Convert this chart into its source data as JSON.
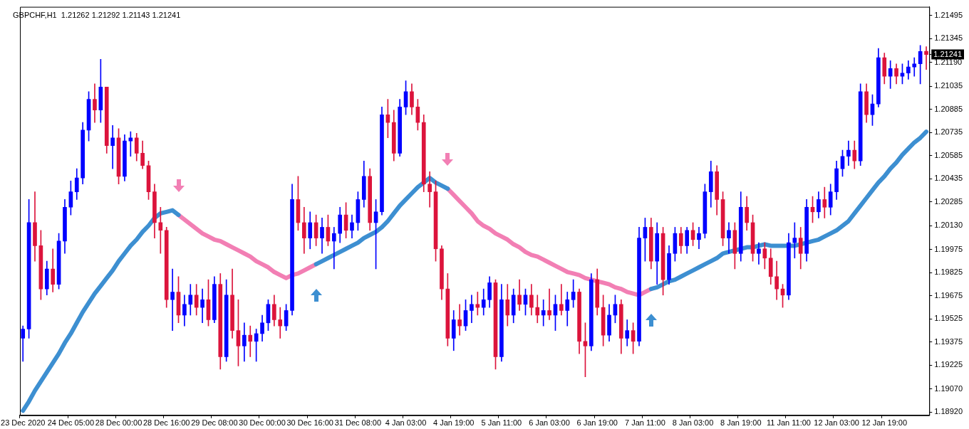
{
  "chart_data": {
    "type": "candlestick",
    "title": "GBPCHF,H1  1.21262 1.21292 1.21143 1.21241",
    "categories": [
      "23 Dec 2020",
      null,
      null,
      null,
      null,
      null,
      null,
      null,
      "24 Dec 05:00",
      null,
      null,
      null,
      null,
      null,
      null,
      null,
      "28 Dec 00:00",
      null,
      null,
      null,
      null,
      null,
      null,
      null,
      "28 Dec 16:00",
      null,
      null,
      null,
      null,
      null,
      null,
      null,
      "29 Dec 08:00",
      null,
      null,
      null,
      null,
      null,
      null,
      null,
      "30 Dec 00:00",
      null,
      null,
      null,
      null,
      null,
      null,
      null,
      "30 Dec 16:00",
      null,
      null,
      null,
      null,
      null,
      null,
      null,
      "31 Dec 08:00",
      null,
      null,
      null,
      null,
      null,
      null,
      null,
      "4 Jan 03:00",
      null,
      null,
      null,
      null,
      null,
      null,
      null,
      "4 Jan 19:00",
      null,
      null,
      null,
      null,
      null,
      null,
      null,
      "5 Jan 11:00",
      null,
      null,
      null,
      null,
      null,
      null,
      null,
      "6 Jan 03:00",
      null,
      null,
      null,
      null,
      null,
      null,
      null,
      "6 Jan 19:00",
      null,
      null,
      null,
      null,
      null,
      null,
      null,
      "7 Jan 11:00",
      null,
      null,
      null,
      null,
      null,
      null,
      null,
      "8 Jan 03:00",
      null,
      null,
      null,
      null,
      null,
      null,
      null,
      "8 Jan 19:00",
      null,
      null,
      null,
      null,
      null,
      null,
      null,
      "11 Jan 11:00",
      null,
      null,
      null,
      null,
      null,
      null,
      null,
      "12 Jan 03:00",
      null,
      null,
      null,
      null,
      null,
      null,
      null,
      "12 Jan 19:00",
      null,
      null,
      null,
      null,
      null,
      null,
      null
    ],
    "ohlc": [
      [
        1.194,
        1.1948,
        1.1925,
        1.1946
      ],
      [
        1.1946,
        1.203,
        1.194,
        1.2015
      ],
      [
        1.2015,
        1.2035,
        1.199,
        1.2
      ],
      [
        1.2,
        1.201,
        1.1965,
        1.1972
      ],
      [
        1.1972,
        1.199,
        1.1968,
        1.1985
      ],
      [
        1.1985,
        1.1998,
        1.197,
        1.1975
      ],
      [
        1.1975,
        1.2008,
        1.1972,
        1.2003
      ],
      [
        1.2003,
        1.203,
        1.1995,
        1.2025
      ],
      [
        1.2025,
        1.2042,
        1.202,
        1.2035
      ],
      [
        1.2035,
        1.205,
        1.203,
        1.2044
      ],
      [
        1.2044,
        1.208,
        1.204,
        1.2075
      ],
      [
        1.2075,
        1.21,
        1.2068,
        1.2095
      ],
      [
        1.2095,
        1.2105,
        1.208,
        1.2088
      ],
      [
        1.2088,
        1.2121,
        1.208,
        1.2103
      ],
      [
        1.2103,
        1.2103,
        1.206,
        1.2065
      ],
      [
        1.2065,
        1.2078,
        1.205,
        1.207
      ],
      [
        1.207,
        1.2076,
        1.204,
        1.2045
      ],
      [
        1.2045,
        1.2072,
        1.2042,
        1.2068
      ],
      [
        1.2068,
        1.2074,
        1.2058,
        1.207
      ],
      [
        1.207,
        1.2073,
        1.2055,
        1.206
      ],
      [
        1.206,
        1.2068,
        1.205,
        1.2052
      ],
      [
        1.2052,
        1.2055,
        1.203,
        1.2035
      ],
      [
        1.2035,
        1.204,
        1.2005,
        1.2015
      ],
      [
        1.2015,
        1.2025,
        1.1995,
        1.201
      ],
      [
        1.201,
        1.2012,
        1.196,
        1.1965
      ],
      [
        1.1965,
        1.1985,
        1.1945,
        1.197
      ],
      [
        1.197,
        1.198,
        1.195,
        1.1955
      ],
      [
        1.1955,
        1.1968,
        1.1948,
        1.1962
      ],
      [
        1.1962,
        1.1975,
        1.1955,
        1.1968
      ],
      [
        1.1968,
        1.1975,
        1.1955,
        1.196
      ],
      [
        1.196,
        1.1972,
        1.195,
        1.1965
      ],
      [
        1.1965,
        1.1978,
        1.1948,
        1.1952
      ],
      [
        1.1952,
        1.198,
        1.195,
        1.1975
      ],
      [
        1.1975,
        1.1982,
        1.192,
        1.1928
      ],
      [
        1.1928,
        1.1978,
        1.1925,
        1.1968
      ],
      [
        1.1968,
        1.1985,
        1.194,
        1.1945
      ],
      [
        1.1945,
        1.1965,
        1.1922,
        1.1935
      ],
      [
        1.1935,
        1.195,
        1.1925,
        1.1942
      ],
      [
        1.1942,
        1.1948,
        1.1928,
        1.1938
      ],
      [
        1.1938,
        1.1946,
        1.1925,
        1.1943
      ],
      [
        1.1943,
        1.1955,
        1.1938,
        1.195
      ],
      [
        1.195,
        1.1965,
        1.1945,
        1.1962
      ],
      [
        1.1962,
        1.1968,
        1.1948,
        1.1952
      ],
      [
        1.1952,
        1.196,
        1.194,
        1.1948
      ],
      [
        1.1948,
        1.1962,
        1.1945,
        1.1958
      ],
      [
        1.1958,
        1.204,
        1.1955,
        1.203
      ],
      [
        1.203,
        1.2045,
        1.201,
        1.2015
      ],
      [
        1.2015,
        1.2025,
        1.1995,
        1.2005
      ],
      [
        1.2005,
        1.2022,
        1.1998,
        1.2015
      ],
      [
        1.2015,
        1.202,
        1.2,
        1.2005
      ],
      [
        1.2005,
        1.2018,
        1.1995,
        1.2012
      ],
      [
        1.2012,
        1.202,
        1.2,
        1.2003
      ],
      [
        1.2003,
        1.2012,
        1.1985,
        1.2008
      ],
      [
        1.2008,
        1.2025,
        1.2002,
        1.202
      ],
      [
        1.202,
        1.2028,
        1.2005,
        1.201
      ],
      [
        1.201,
        1.202,
        1.2005,
        1.2015
      ],
      [
        1.2015,
        1.2035,
        1.201,
        1.203
      ],
      [
        1.203,
        1.2055,
        1.2025,
        1.2045
      ],
      [
        1.2045,
        1.205,
        1.201,
        1.2015
      ],
      [
        1.2015,
        1.203,
        1.1985,
        1.2022
      ],
      [
        1.2022,
        1.209,
        1.202,
        1.2085
      ],
      [
        1.2085,
        1.2095,
        1.207,
        1.208
      ],
      [
        1.208,
        1.2088,
        1.2055,
        1.206
      ],
      [
        1.206,
        1.2095,
        1.2058,
        1.209
      ],
      [
        1.209,
        1.2107,
        1.2085,
        1.21
      ],
      [
        1.21,
        1.2105,
        1.2085,
        1.209
      ],
      [
        1.209,
        1.2095,
        1.2075,
        1.208
      ],
      [
        1.208,
        1.2085,
        1.2035,
        1.204
      ],
      [
        1.204,
        1.2048,
        1.2025,
        1.2035
      ],
      [
        1.2035,
        1.2042,
        1.199,
        1.1998
      ],
      [
        1.1998,
        1.2,
        1.1965,
        1.1972
      ],
      [
        1.1972,
        1.1982,
        1.1935,
        1.194
      ],
      [
        1.194,
        1.1958,
        1.1932,
        1.1952
      ],
      [
        1.1952,
        1.1962,
        1.1942,
        1.1948
      ],
      [
        1.1948,
        1.1965,
        1.1945,
        1.1958
      ],
      [
        1.1958,
        1.1968,
        1.195,
        1.1962
      ],
      [
        1.1962,
        1.197,
        1.1955,
        1.196
      ],
      [
        1.196,
        1.1972,
        1.1955,
        1.1965
      ],
      [
        1.1965,
        1.198,
        1.196,
        1.1976
      ],
      [
        1.1976,
        1.1978,
        1.192,
        1.1928
      ],
      [
        1.1928,
        1.1975,
        1.1925,
        1.1965
      ],
      [
        1.1965,
        1.1975,
        1.1948,
        1.1955
      ],
      [
        1.1955,
        1.1972,
        1.195,
        1.1968
      ],
      [
        1.1968,
        1.1978,
        1.1958,
        1.1962
      ],
      [
        1.1962,
        1.1972,
        1.1955,
        1.1968
      ],
      [
        1.1968,
        1.1975,
        1.1955,
        1.196
      ],
      [
        1.196,
        1.1968,
        1.195,
        1.1955
      ],
      [
        1.1955,
        1.1965,
        1.1948,
        1.1958
      ],
      [
        1.1958,
        1.1972,
        1.1952,
        1.1955
      ],
      [
        1.1955,
        1.1968,
        1.1945,
        1.1962
      ],
      [
        1.1962,
        1.1975,
        1.1955,
        1.1958
      ],
      [
        1.1958,
        1.197,
        1.1948,
        1.1965
      ],
      [
        1.1965,
        1.1978,
        1.196,
        1.197
      ],
      [
        1.197,
        1.1972,
        1.193,
        1.1938
      ],
      [
        1.1938,
        1.195,
        1.1915,
        1.1935
      ],
      [
        1.1935,
        1.1982,
        1.1932,
        1.1978
      ],
      [
        1.1978,
        1.1985,
        1.1955,
        1.196
      ],
      [
        1.196,
        1.1968,
        1.1935,
        1.1942
      ],
      [
        1.1942,
        1.1962,
        1.1938,
        1.1955
      ],
      [
        1.1955,
        1.1968,
        1.195,
        1.1962
      ],
      [
        1.1962,
        1.1965,
        1.193,
        1.194
      ],
      [
        1.194,
        1.1952,
        1.1935,
        1.1945
      ],
      [
        1.1945,
        1.195,
        1.193,
        1.1938
      ],
      [
        1.1938,
        1.2012,
        1.1935,
        1.2005
      ],
      [
        1.2005,
        1.2018,
        1.199,
        1.2012
      ],
      [
        1.2012,
        1.2018,
        1.1985,
        1.199
      ],
      [
        1.199,
        1.2015,
        1.1975,
        1.2008
      ],
      [
        1.2008,
        1.2012,
        1.1968,
        1.1978
      ],
      [
        1.1978,
        1.2,
        1.1975,
        1.1995
      ],
      [
        1.1995,
        1.2012,
        1.199,
        1.2008
      ],
      [
        1.2008,
        1.2012,
        1.1995,
        1.2
      ],
      [
        1.2,
        1.2012,
        1.1995,
        1.201
      ],
      [
        1.201,
        1.2015,
        1.2,
        1.2004
      ],
      [
        1.2004,
        1.2012,
        1.1998,
        1.2008
      ],
      [
        1.2008,
        1.204,
        1.2005,
        1.2035
      ],
      [
        1.2035,
        1.2055,
        1.2025,
        1.2048
      ],
      [
        1.2048,
        1.2052,
        1.202,
        1.203
      ],
      [
        1.203,
        1.2035,
        1.2,
        1.2005
      ],
      [
        1.2005,
        1.2015,
        1.1995,
        1.201
      ],
      [
        1.201,
        1.2015,
        1.1985,
        1.1995
      ],
      [
        1.1995,
        1.2035,
        1.199,
        1.2025
      ],
      [
        1.2025,
        1.2032,
        1.201,
        1.2015
      ],
      [
        1.2015,
        1.202,
        1.199,
        1.1995
      ],
      [
        1.1995,
        1.2002,
        1.1988,
        1.1998
      ],
      [
        1.1998,
        1.2002,
        1.1985,
        1.1992
      ],
      [
        1.1992,
        1.1998,
        1.1975,
        1.198
      ],
      [
        1.198,
        1.199,
        1.1965,
        1.1972
      ],
      [
        1.1972,
        1.1975,
        1.196,
        1.1968
      ],
      [
        1.1968,
        1.2008,
        1.1965,
        1.2002
      ],
      [
        1.2002,
        1.2015,
        1.1992,
        1.2005
      ],
      [
        1.2005,
        1.2012,
        1.1985,
        1.1995
      ],
      [
        1.1995,
        1.203,
        1.199,
        1.2025
      ],
      [
        1.2025,
        1.2032,
        1.2015,
        1.2022
      ],
      [
        1.2022,
        1.2035,
        1.2018,
        1.203
      ],
      [
        1.203,
        1.2038,
        1.2018,
        1.2025
      ],
      [
        1.2025,
        1.204,
        1.202,
        1.2035
      ],
      [
        1.2035,
        1.2055,
        1.203,
        1.205
      ],
      [
        1.205,
        1.2062,
        1.2045,
        1.2058
      ],
      [
        1.2058,
        1.2068,
        1.2052,
        1.2062
      ],
      [
        1.2062,
        1.2068,
        1.205,
        1.2055
      ],
      [
        1.2055,
        1.2105,
        1.2052,
        1.21
      ],
      [
        1.21,
        1.2105,
        1.208,
        1.2085
      ],
      [
        1.2085,
        1.2098,
        1.2078,
        1.2092
      ],
      [
        1.2092,
        1.2128,
        1.209,
        1.2122
      ],
      [
        1.2122,
        1.2125,
        1.2105,
        1.211
      ],
      [
        1.211,
        1.212,
        1.2102,
        1.2115
      ],
      [
        1.2115,
        1.2118,
        1.2105,
        1.211
      ],
      [
        1.211,
        1.2118,
        1.2105,
        1.2112
      ],
      [
        1.2112,
        1.212,
        1.2108,
        1.2116
      ],
      [
        1.2116,
        1.2122,
        1.211,
        1.2118
      ],
      [
        1.2118,
        1.213,
        1.2105,
        1.2126
      ],
      [
        1.21262,
        1.21292,
        1.21143,
        1.21241
      ]
    ],
    "series": [
      {
        "type": "line",
        "color": "#3d8fd1",
        "values": [
          1.1893,
          1.1899,
          1.1906,
          1.1912,
          1.1918,
          1.1924,
          1.193,
          1.1937,
          1.1943,
          1.195,
          1.1957,
          1.1963,
          1.1969,
          1.1974,
          1.1979,
          1.1984,
          1.199,
          1.1995,
          1.2,
          1.2004,
          1.2009,
          1.2013,
          1.2018,
          1.2021,
          1.2022,
          1.2023,
          1.202,
          null,
          null,
          null,
          null,
          null,
          null,
          null,
          null,
          null,
          null,
          null,
          null,
          null,
          null,
          null,
          null,
          null,
          null,
          null,
          null,
          null,
          null,
          1.1988,
          1.199,
          1.1992,
          1.1994,
          1.1996,
          1.1998,
          1.2,
          1.2002,
          1.2005,
          1.2007,
          1.2009,
          1.2012,
          1.2016,
          1.2021,
          1.2026,
          1.203,
          1.2034,
          1.2038,
          1.2041,
          1.2044,
          1.2041,
          1.2039,
          1.2037,
          null,
          null,
          null,
          null,
          null,
          null,
          null,
          null,
          null,
          null,
          null,
          null,
          null,
          null,
          null,
          null,
          null,
          null,
          null,
          null,
          null,
          null,
          null,
          null,
          null,
          null,
          null,
          null,
          null,
          null,
          null,
          null,
          null,
          1.1972,
          1.1973,
          1.1975,
          1.1977,
          1.1978,
          1.198,
          1.1982,
          1.1984,
          1.1986,
          1.1988,
          1.199,
          1.1992,
          1.1995,
          1.1996,
          1.1997,
          1.1998,
          1.1999,
          1.1999,
          1.2,
          1.2001,
          1.2,
          1.2,
          1.2,
          1.2,
          1.2,
          1.2001,
          1.2002,
          1.2003,
          1.2004,
          1.2006,
          1.2008,
          1.201,
          1.2013,
          1.2016,
          1.2021,
          1.2026,
          1.2031,
          1.2036,
          1.2041,
          1.2045,
          1.205,
          1.2054,
          1.2059,
          1.2063,
          1.2067,
          1.207,
          1.2074
        ]
      },
      {
        "type": "line",
        "color": "#f27fb4",
        "values": [
          null,
          null,
          null,
          null,
          null,
          null,
          null,
          null,
          null,
          null,
          null,
          null,
          null,
          null,
          null,
          null,
          null,
          null,
          null,
          null,
          null,
          null,
          null,
          null,
          null,
          null,
          1.202,
          1.2017,
          1.2014,
          1.2011,
          1.2008,
          1.2006,
          1.2004,
          1.2003,
          1.2001,
          1.1999,
          1.1997,
          1.1995,
          1.1993,
          1.199,
          1.1988,
          1.1986,
          1.1983,
          1.1981,
          1.1979,
          1.1981,
          1.1982,
          1.1984,
          1.1986,
          1.1988,
          null,
          null,
          null,
          null,
          null,
          null,
          null,
          null,
          null,
          null,
          null,
          null,
          null,
          null,
          null,
          null,
          null,
          null,
          null,
          null,
          null,
          1.2037,
          1.2033,
          1.2029,
          1.2025,
          1.2021,
          1.2016,
          1.2013,
          1.2011,
          1.2008,
          1.2006,
          1.2004,
          1.2001,
          1.1999,
          1.1996,
          1.1994,
          1.1993,
          1.1991,
          1.1989,
          1.1987,
          1.1985,
          1.1983,
          1.1982,
          1.1981,
          1.1979,
          1.1978,
          1.1977,
          1.1976,
          1.1975,
          1.1973,
          1.1972,
          1.197,
          1.1969,
          1.1968,
          1.197,
          1.1972,
          null,
          null,
          null,
          null,
          null,
          null,
          null,
          null,
          null,
          null,
          null,
          null,
          null,
          null,
          null,
          null,
          null,
          null,
          null,
          null,
          null,
          null,
          null,
          null,
          null,
          null,
          null,
          null,
          null,
          null,
          null,
          null,
          null,
          null,
          null,
          null,
          null,
          null,
          null,
          null,
          null,
          null,
          null,
          null,
          null,
          null
        ]
      }
    ],
    "ylim": [
      1.189,
      1.2155
    ],
    "yticks": [
      {
        "value": 1.1892,
        "label": "1.18920"
      },
      {
        "value": 1.1907,
        "label": "1.19070"
      },
      {
        "value": 1.19225,
        "label": "1.19225"
      },
      {
        "value": 1.19375,
        "label": "1.19375"
      },
      {
        "value": 1.19525,
        "label": "1.19525"
      },
      {
        "value": 1.19675,
        "label": "1.19675"
      },
      {
        "value": 1.19825,
        "label": "1.19825"
      },
      {
        "value": 1.19975,
        "label": "1.19975"
      },
      {
        "value": 1.2013,
        "label": "1.20130"
      },
      {
        "value": 1.20285,
        "label": "1.20285"
      },
      {
        "value": 1.20435,
        "label": "1.20435"
      },
      {
        "value": 1.20585,
        "label": "1.20585"
      },
      {
        "value": 1.20735,
        "label": "1.20735"
      },
      {
        "value": 1.20885,
        "label": "1.20885"
      },
      {
        "value": 1.21035,
        "label": "1.21035"
      },
      {
        "value": 1.2119,
        "label": "1.21190"
      },
      {
        "value": 1.21345,
        "label": "1.21345"
      },
      {
        "value": 1.21495,
        "label": "1.21495"
      }
    ],
    "annotations": [
      "1.21241"
    ],
    "grid": false,
    "legend": false
  }
}
